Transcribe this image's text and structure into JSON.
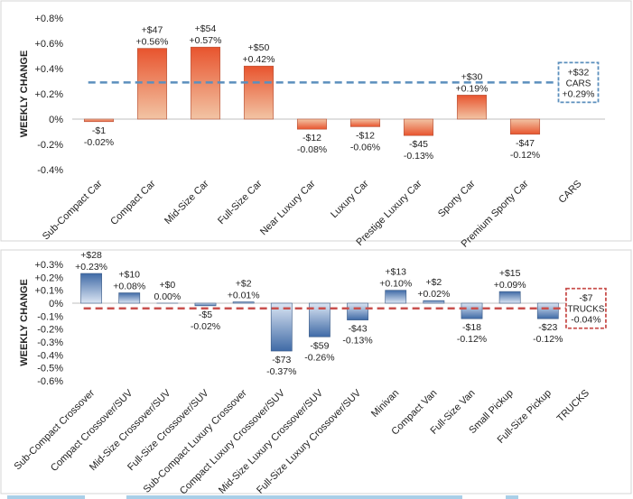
{
  "chart_data": [
    {
      "type": "bar",
      "ylabel": "WEEKLY CHANGE",
      "ylim": [
        -0.4,
        0.8
      ],
      "y_ticks": [
        "-0.4%",
        "-0.2%",
        "0%",
        "+0.2%",
        "+0.4%",
        "+0.6%",
        "+0.8%"
      ],
      "y_tick_values": [
        -0.4,
        -0.2,
        0,
        0.2,
        0.4,
        0.6,
        0.8
      ],
      "categories": [
        "Sub-Compact Car",
        "Compact Car",
        "Mid-Size Car",
        "Full-Size Car",
        "Near Luxury Car",
        "Luxury Car",
        "Prestige Luxury Car",
        "Sporty Car",
        "Premium Sporty Car",
        "CARS"
      ],
      "values": [
        -0.02,
        0.56,
        0.57,
        0.42,
        -0.08,
        -0.06,
        -0.13,
        0.19,
        -0.12,
        null
      ],
      "dollar_labels": [
        "-$1",
        "+$47",
        "+$54",
        "+$50",
        "-$12",
        "-$12",
        "-$45",
        "+$30",
        "-$47",
        null
      ],
      "pct_labels": [
        "-0.02%",
        "+0.56%",
        "+0.57%",
        "+0.42%",
        "-0.08%",
        "-0.06%",
        "-0.13%",
        "+0.19%",
        "-0.12%",
        null
      ],
      "average": {
        "value": 0.29,
        "dollar": "+$32",
        "name": "CARS",
        "pct": "+0.29%",
        "color": "#5b8fbd"
      },
      "bar_colors": [
        "#e8542e",
        "#f2c4a4"
      ],
      "bar_stroke": "#b4533a"
    },
    {
      "type": "bar",
      "ylabel": "WEEKLY CHANGE",
      "ylim": [
        -0.6,
        0.3
      ],
      "y_ticks": [
        "-0.6%",
        "-0.5%",
        "-0.4%",
        "-0.3%",
        "-0.2%",
        "-0.1%",
        "0%",
        "+0.1%",
        "+0.2%",
        "+0.3%"
      ],
      "y_tick_values": [
        -0.6,
        -0.5,
        -0.4,
        -0.3,
        -0.2,
        -0.1,
        0,
        0.1,
        0.2,
        0.3
      ],
      "categories": [
        "Sub-Compact Crossover",
        "Compact Crossover/SUV",
        "Mid-Size Crossover/SUV",
        "Full-Size Crossover/SUV",
        "Sub-Compact Luxury Crossover",
        "Compact Luxury Crossover/SUV",
        "Mid-Size Luxury Crossover/SUV",
        "Full-Size Luxury Crossover/SUV",
        "Minivan",
        "Compact Van",
        "Full-Size Van",
        "Small Pickup",
        "Full-Size Pickup",
        "TRUCKS"
      ],
      "values": [
        0.23,
        0.08,
        0.0,
        -0.02,
        0.01,
        -0.37,
        -0.26,
        -0.13,
        0.1,
        0.02,
        -0.12,
        0.09,
        -0.12,
        null
      ],
      "dollar_labels": [
        "+$28",
        "+$10",
        "+$0",
        "-$5",
        "+$2",
        "-$73",
        "-$59",
        "-$43",
        "+$13",
        "+$2",
        "-$18",
        "+$15",
        "-$23",
        null
      ],
      "pct_labels": [
        "+0.23%",
        "+0.08%",
        "0.00%",
        "-0.02%",
        "+0.01%",
        "-0.37%",
        "-0.26%",
        "-0.13%",
        "+0.10%",
        "+0.02%",
        "-0.12%",
        "+0.09%",
        "-0.12%",
        null
      ],
      "average": {
        "value": -0.04,
        "dollar": "-$7",
        "name": "TRUCKS",
        "pct": "-0.04%",
        "color": "#c9504d"
      },
      "bar_colors": [
        "#3f6aa6",
        "#dbe5f3"
      ],
      "bar_stroke": "#3a5a86"
    }
  ]
}
